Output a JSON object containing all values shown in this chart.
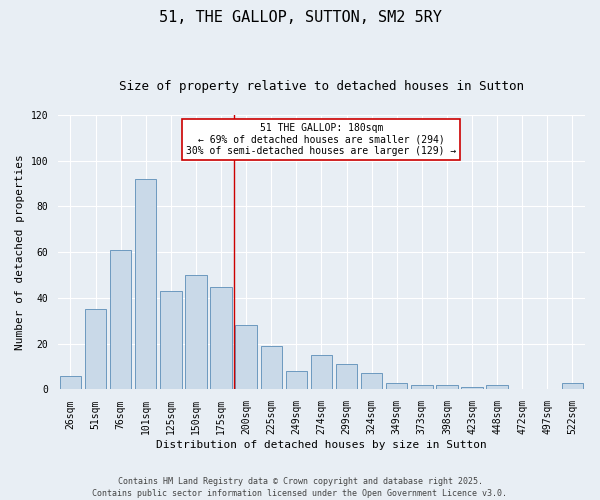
{
  "title": "51, THE GALLOP, SUTTON, SM2 5RY",
  "subtitle": "Size of property relative to detached houses in Sutton",
  "xlabel": "Distribution of detached houses by size in Sutton",
  "ylabel": "Number of detached properties",
  "categories": [
    "26sqm",
    "51sqm",
    "76sqm",
    "101sqm",
    "125sqm",
    "150sqm",
    "175sqm",
    "200sqm",
    "225sqm",
    "249sqm",
    "274sqm",
    "299sqm",
    "324sqm",
    "349sqm",
    "373sqm",
    "398sqm",
    "423sqm",
    "448sqm",
    "472sqm",
    "497sqm",
    "522sqm"
  ],
  "values": [
    6,
    35,
    61,
    92,
    43,
    50,
    45,
    28,
    19,
    8,
    15,
    11,
    7,
    3,
    2,
    2,
    1,
    2,
    0,
    0,
    3
  ],
  "bar_color": "#c9d9e8",
  "bar_edge_color": "#5b8db8",
  "background_color": "#e8eef4",
  "grid_color": "#ffffff",
  "annotation_box_color": "#ffffff",
  "annotation_box_edge": "#cc0000",
  "vline_color": "#cc0000",
  "annotation_title": "51 THE GALLOP: 180sqm",
  "annotation_line1": "← 69% of detached houses are smaller (294)",
  "annotation_line2": "30% of semi-detached houses are larger (129) →",
  "ylim": [
    0,
    120
  ],
  "yticks": [
    0,
    20,
    40,
    60,
    80,
    100,
    120
  ],
  "footer1": "Contains HM Land Registry data © Crown copyright and database right 2025.",
  "footer2": "Contains public sector information licensed under the Open Government Licence v3.0.",
  "title_fontsize": 11,
  "subtitle_fontsize": 9,
  "ylabel_fontsize": 8,
  "xlabel_fontsize": 8,
  "tick_fontsize": 7,
  "ann_fontsize": 7,
  "footer_fontsize": 6
}
